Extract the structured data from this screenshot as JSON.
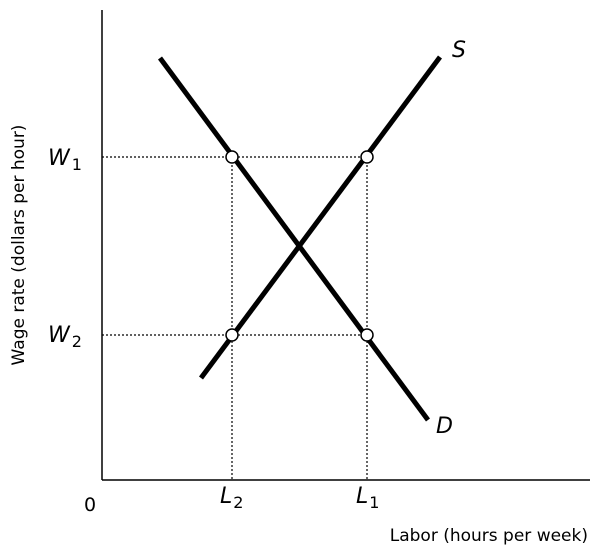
{
  "axes": {
    "y_label": "Wage rate (dollars per hour)",
    "x_label": "Labor (hours per week)",
    "origin": "0"
  },
  "curves": {
    "supply": "S",
    "demand": "D"
  },
  "wages": [
    {
      "symbol": "W",
      "subscript": "1"
    },
    {
      "symbol": "W",
      "subscript": "2"
    }
  ],
  "labor": [
    {
      "symbol": "L",
      "subscript": "2"
    },
    {
      "symbol": "L",
      "subscript": "1"
    }
  ]
}
